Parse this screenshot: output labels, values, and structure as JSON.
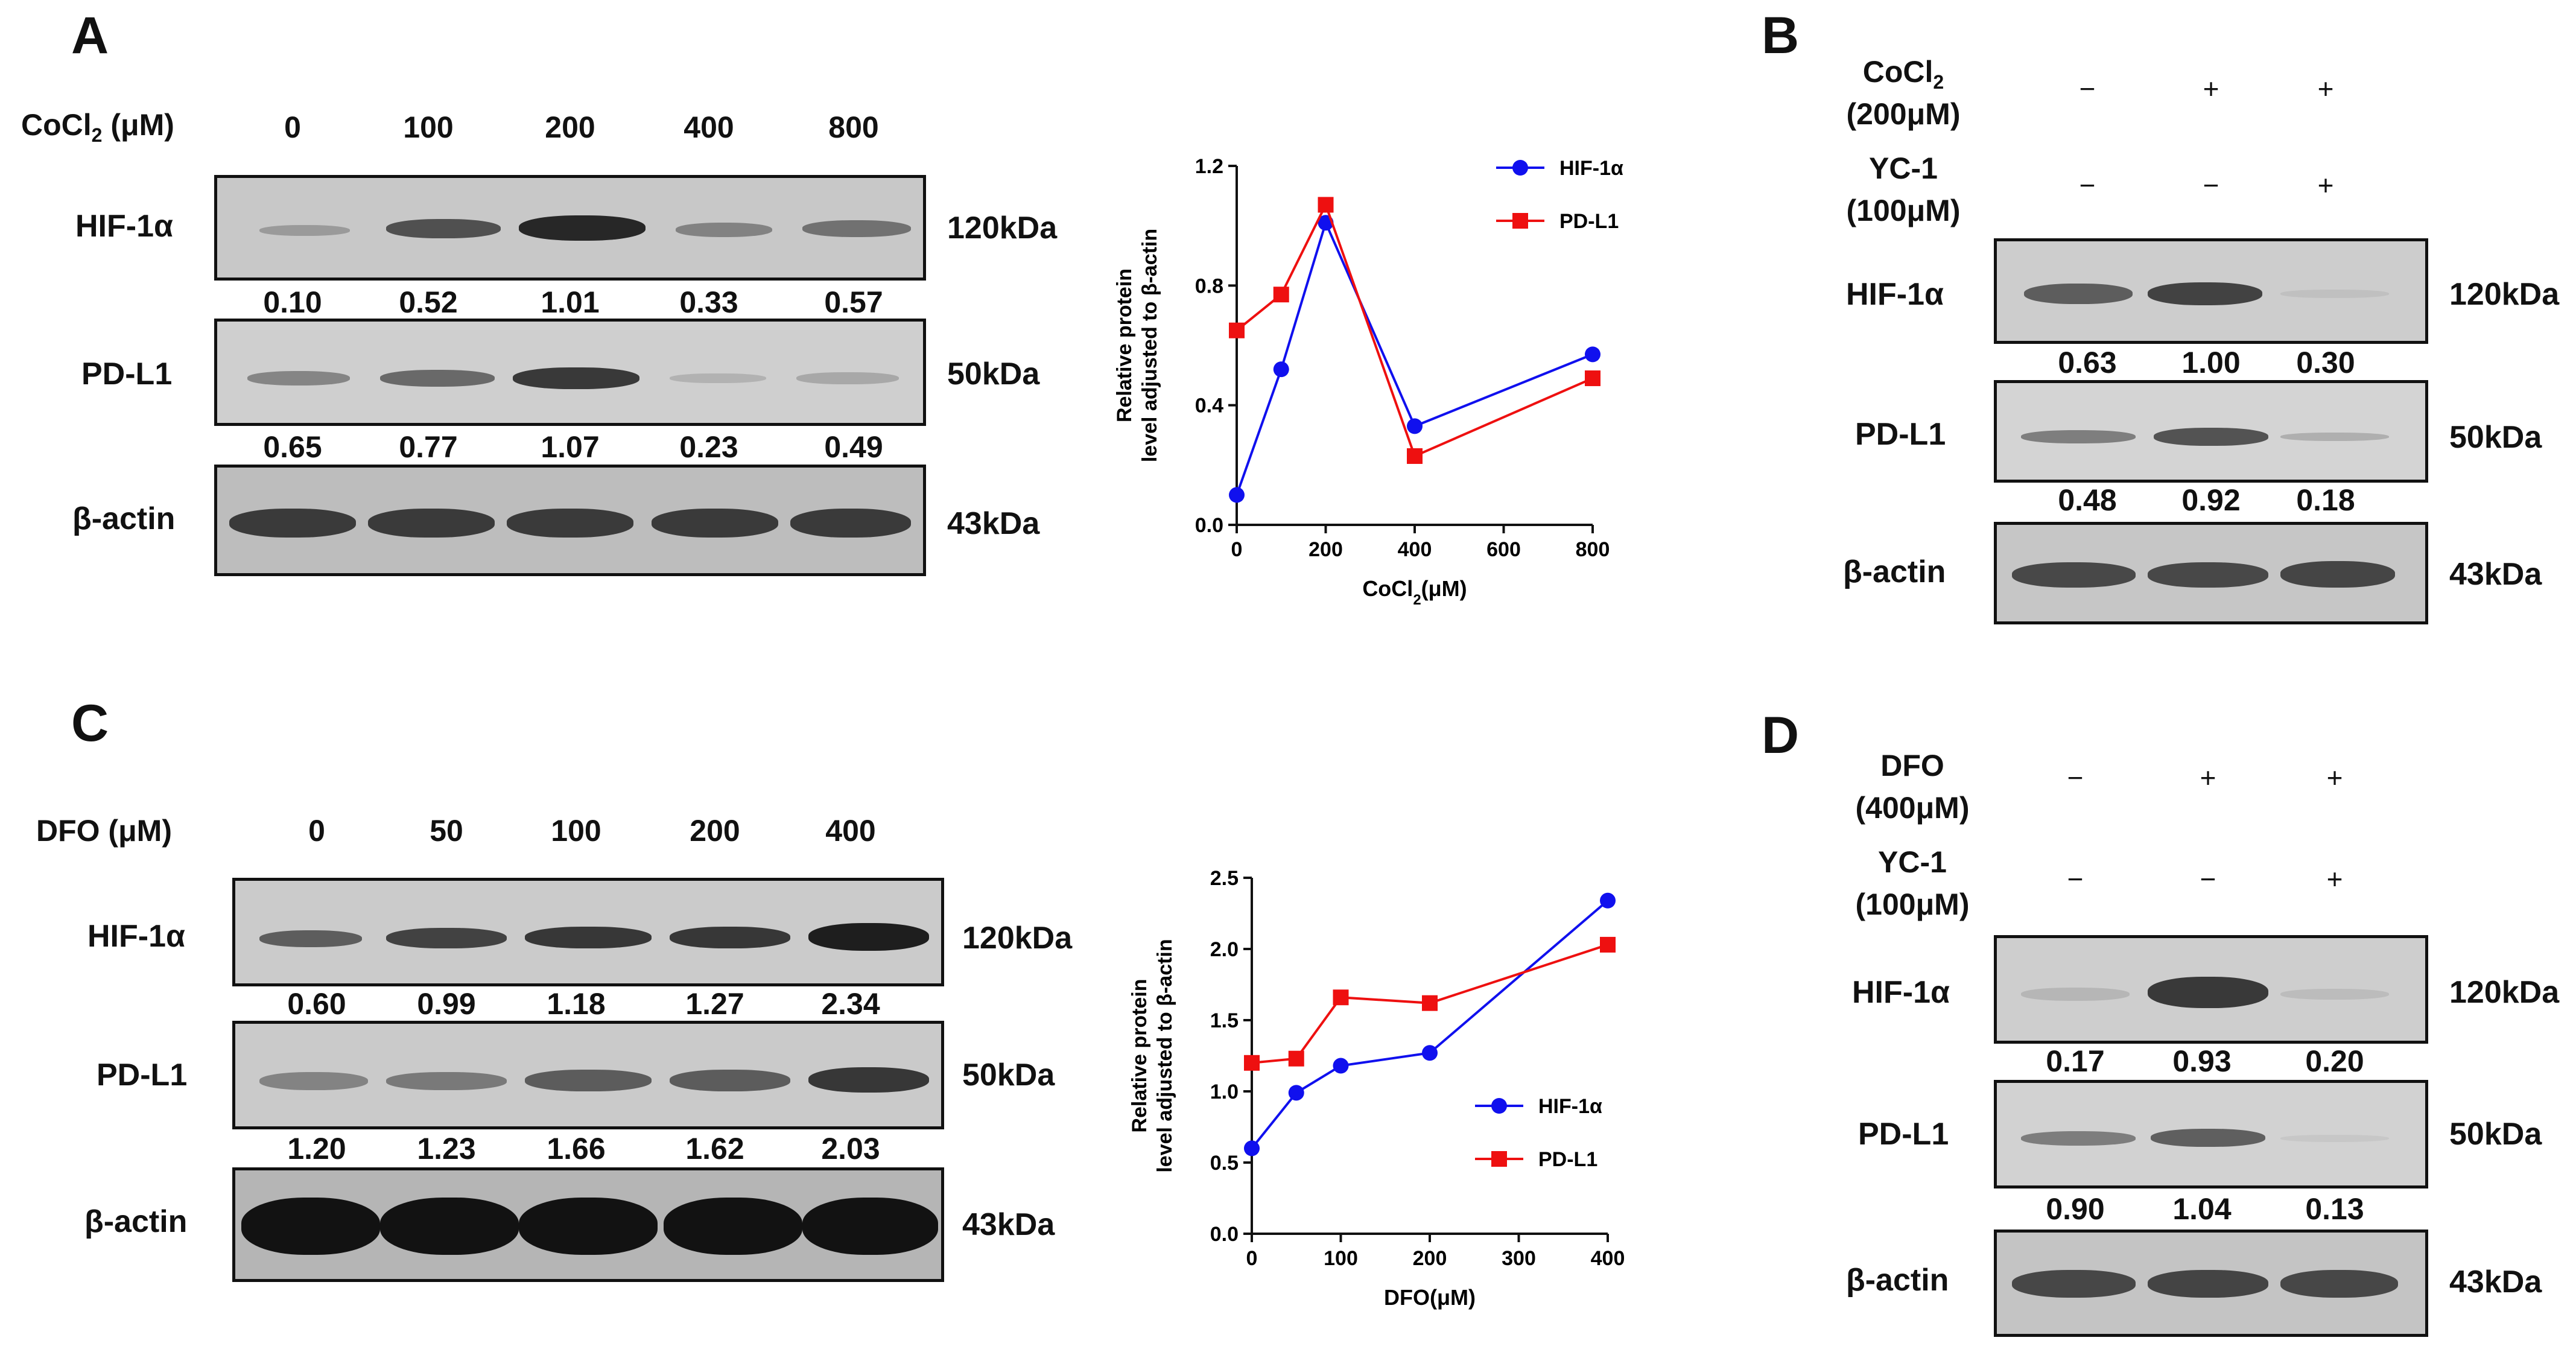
{
  "panels": {
    "A": {
      "letter": "A",
      "treatment": "CoCl",
      "treatment_sub": "2",
      "treatment_unit": " (μM)",
      "doses": [
        "0",
        "100",
        "200",
        "400",
        "800"
      ],
      "rows": [
        {
          "label": "HIF-1α",
          "mw": "120kDa",
          "quant": [
            "0.10",
            "0.52",
            "1.01",
            "0.33",
            "0.57"
          ]
        },
        {
          "label": "PD-L1",
          "mw": "50kDa",
          "quant": [
            "0.65",
            "0.77",
            "1.07",
            "0.23",
            "0.49"
          ]
        },
        {
          "label": "β-actin",
          "mw": "43kDa"
        }
      ]
    },
    "B": {
      "letter": "B",
      "cond1": {
        "line1_main": "CoCl",
        "line1_sub": "2",
        "line2": "(200μM)",
        "signs": [
          "−",
          "+",
          "+"
        ]
      },
      "cond2": {
        "line1": "YC-1",
        "line2": "(100μM)",
        "signs": [
          "−",
          "−",
          "+"
        ]
      },
      "rows": [
        {
          "label": "HIF-1α",
          "mw": "120kDa",
          "quant": [
            "0.63",
            "1.00",
            "0.30"
          ]
        },
        {
          "label": "PD-L1",
          "mw": "50kDa",
          "quant": [
            "0.48",
            "0.92",
            "0.18"
          ]
        },
        {
          "label": "β-actin",
          "mw": "43kDa"
        }
      ]
    },
    "C": {
      "letter": "C",
      "treatment": "DFO (μM)",
      "doses": [
        "0",
        "50",
        "100",
        "200",
        "400"
      ],
      "rows": [
        {
          "label": "HIF-1α",
          "mw": "120kDa",
          "quant": [
            "0.60",
            "0.99",
            "1.18",
            "1.27",
            "2.34"
          ]
        },
        {
          "label": "PD-L1",
          "mw": "50kDa",
          "quant": [
            "1.20",
            "1.23",
            "1.66",
            "1.62",
            "2.03"
          ]
        },
        {
          "label": "β-actin",
          "mw": "43kDa"
        }
      ]
    },
    "D": {
      "letter": "D",
      "cond1": {
        "line1": "DFO",
        "line2": "(400μM)",
        "signs": [
          "−",
          "+",
          "+"
        ]
      },
      "cond2": {
        "line1": "YC-1",
        "line2": "(100μM)",
        "signs": [
          "−",
          "−",
          "+"
        ]
      },
      "rows": [
        {
          "label": "HIF-1α",
          "mw": "120kDa",
          "quant": [
            "0.17",
            "0.93",
            "0.20"
          ]
        },
        {
          "label": "PD-L1",
          "mw": "50kDa",
          "quant": [
            "0.90",
            "1.04",
            "0.13"
          ]
        },
        {
          "label": "β-actin",
          "mw": "43kDa"
        }
      ]
    }
  },
  "colors": {
    "hif": "#1010ee",
    "pdl1": "#ee1010"
  },
  "chart_data": [
    {
      "type": "line",
      "ylabel_line1": "Relative protein",
      "ylabel_line2": "level adjusted to β-actin",
      "xlabel_main": "CoCl",
      "xlabel_sub": "2",
      "xlabel_unit": "(μM)",
      "xlim": [
        0,
        800
      ],
      "ylim": [
        0,
        1.2
      ],
      "xticks": [
        0,
        200,
        400,
        600,
        800
      ],
      "xtick_labels": [
        "0",
        "200",
        "400",
        "600",
        "800"
      ],
      "yticks": [
        0,
        0.4,
        0.8,
        1.2
      ],
      "ytick_labels": [
        "0.0",
        "0.4",
        "0.8",
        "1.2"
      ],
      "x": [
        0,
        100,
        200,
        400,
        800
      ],
      "series": [
        {
          "name": "HIF-1α",
          "marker": "circle",
          "values": [
            0.1,
            0.52,
            1.01,
            0.33,
            0.57
          ]
        },
        {
          "name": "PD-L1",
          "marker": "square",
          "values": [
            0.65,
            0.77,
            1.07,
            0.23,
            0.49
          ]
        }
      ],
      "legend": "top-right"
    },
    {
      "type": "line",
      "ylabel_line1": "Relative protein",
      "ylabel_line2": "level adjusted to β-actin",
      "xlabel_main": "DFO",
      "xlabel_sub": "",
      "xlabel_unit": "(μM)",
      "xlim": [
        0,
        400
      ],
      "ylim": [
        0,
        2.5
      ],
      "xticks": [
        0,
        100,
        200,
        300,
        400
      ],
      "xtick_labels": [
        "0",
        "100",
        "200",
        "300",
        "400"
      ],
      "yticks": [
        0,
        0.5,
        1.0,
        1.5,
        2.0,
        2.5
      ],
      "ytick_labels": [
        "0.0",
        "0.5",
        "1.0",
        "1.5",
        "2.0",
        "2.5"
      ],
      "x": [
        0,
        50,
        100,
        200,
        400
      ],
      "series": [
        {
          "name": "HIF-1α",
          "marker": "circle",
          "values": [
            0.6,
            0.99,
            1.18,
            1.27,
            2.34
          ]
        },
        {
          "name": "PD-L1",
          "marker": "square",
          "values": [
            1.2,
            1.23,
            1.66,
            1.62,
            2.03
          ]
        }
      ],
      "legend": "bottom-right"
    }
  ]
}
